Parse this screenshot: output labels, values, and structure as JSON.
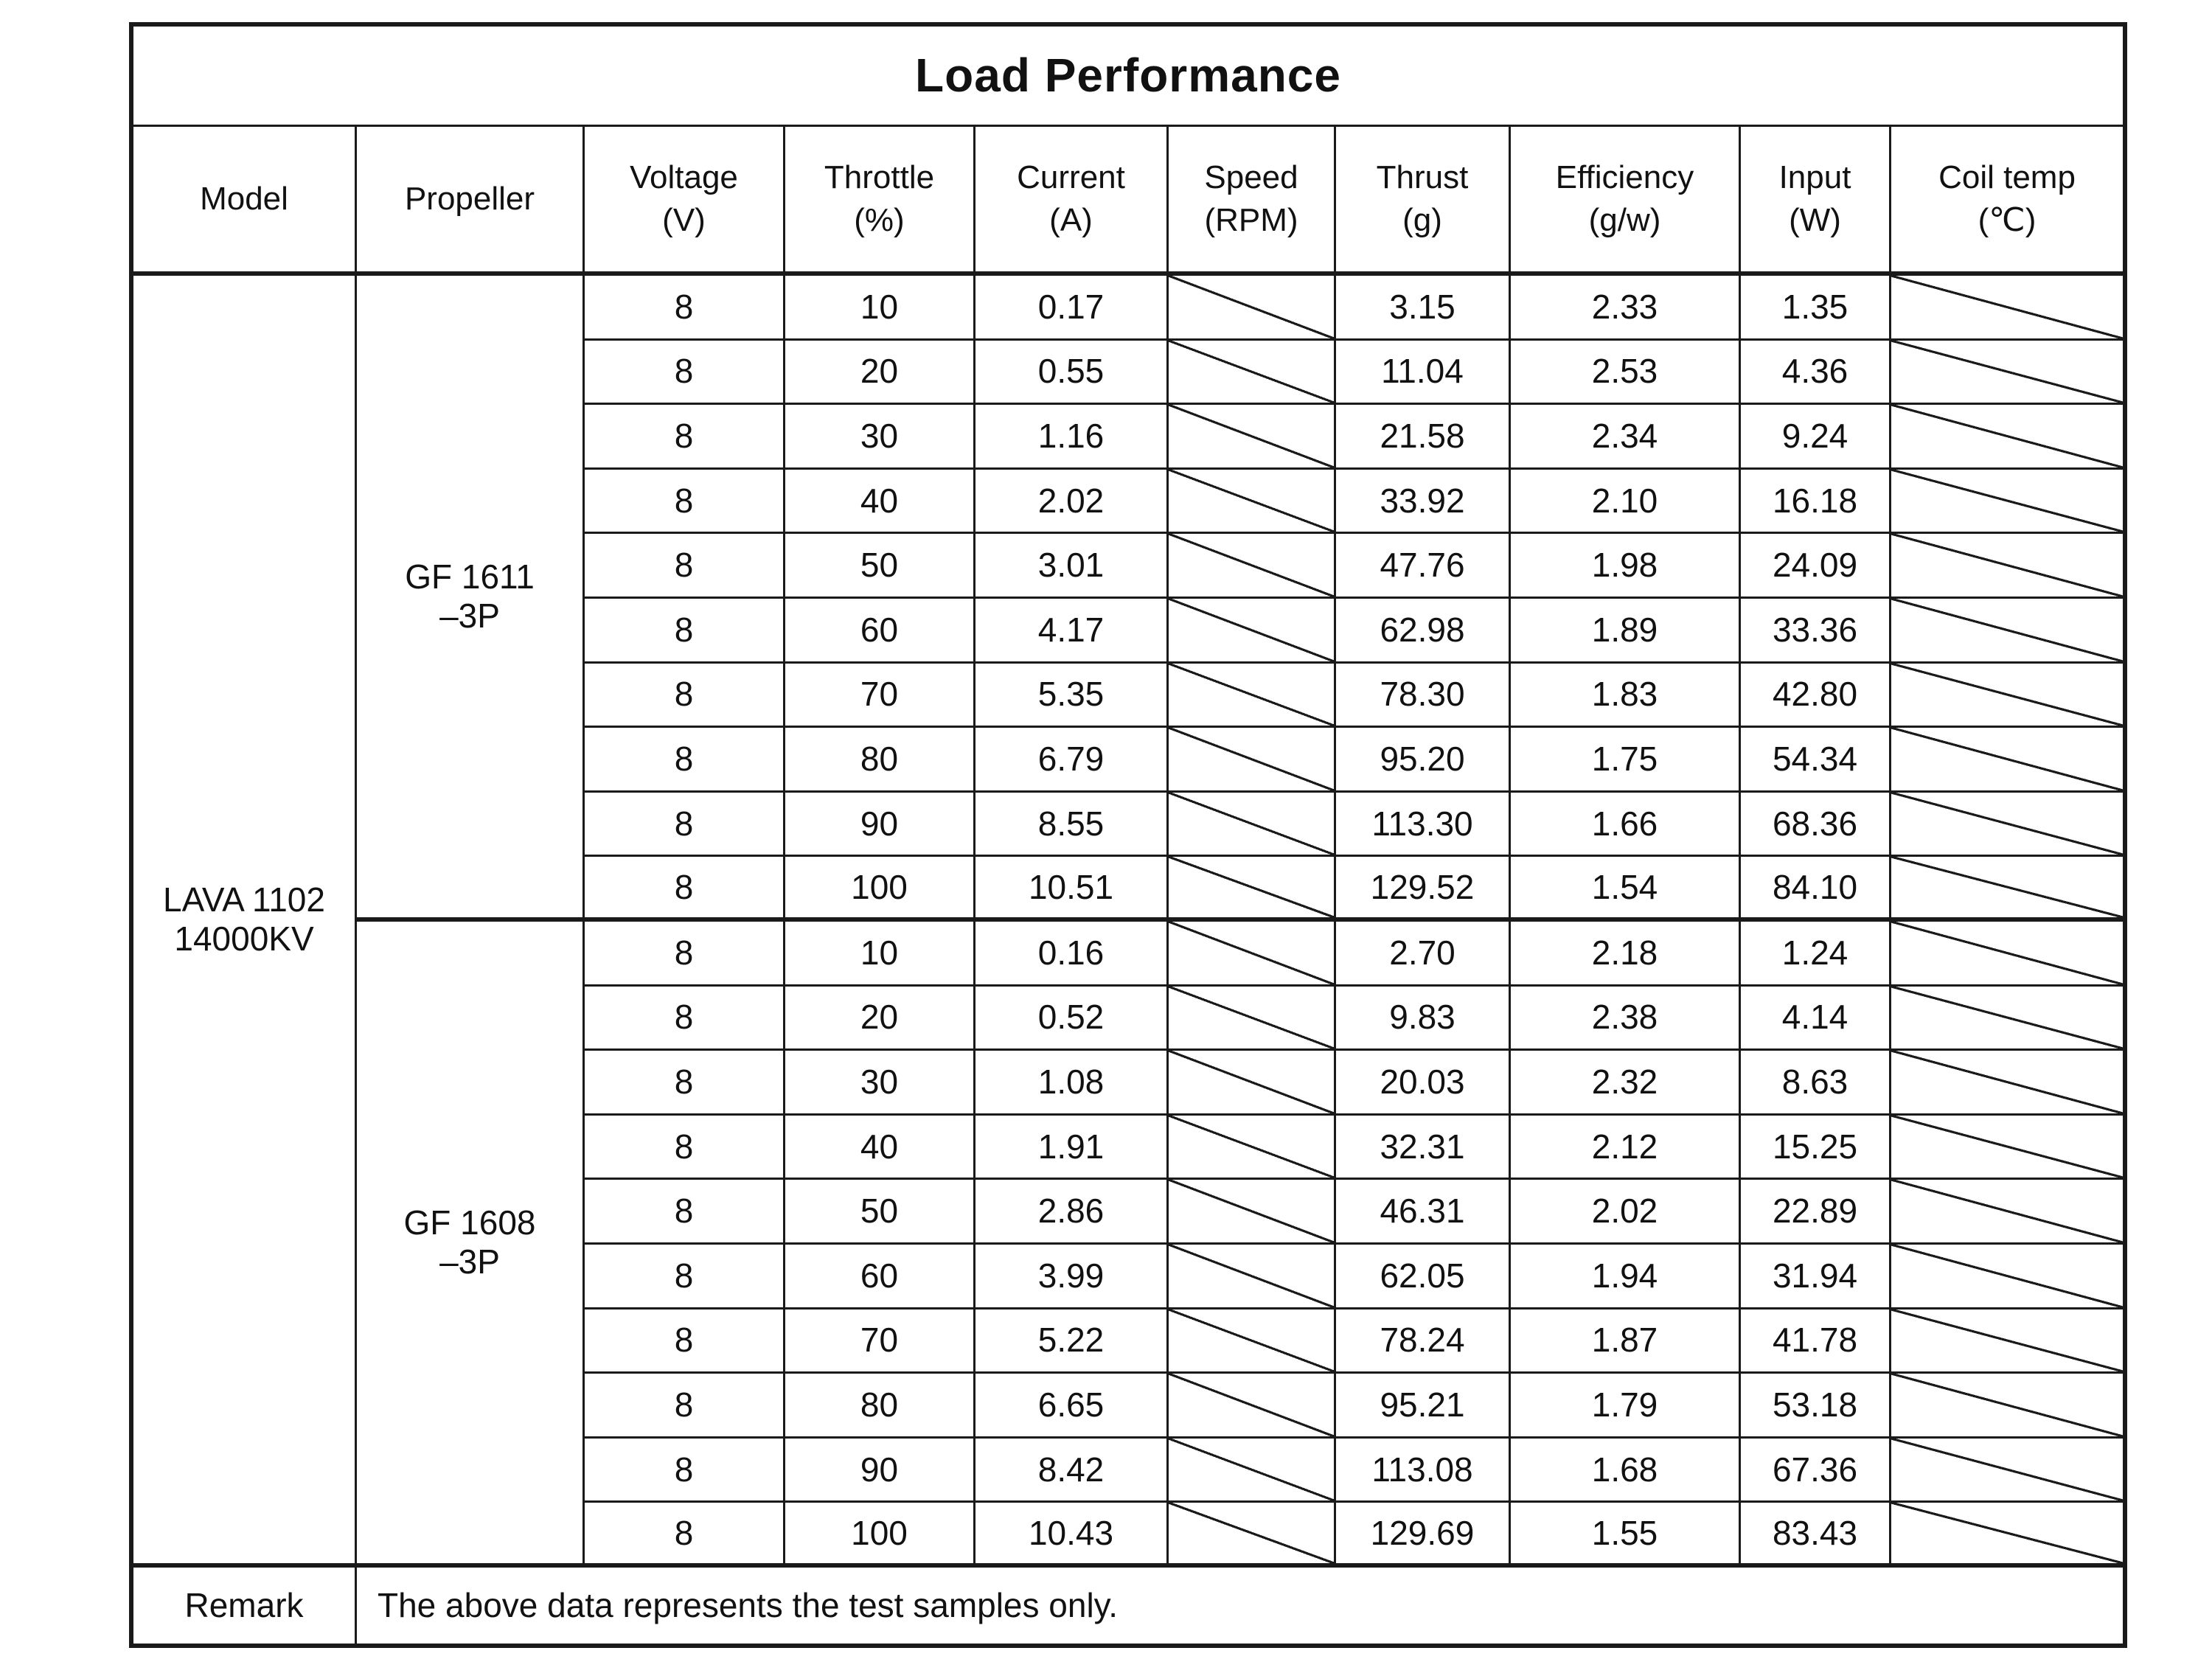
{
  "title": "Load Performance",
  "columns": [
    {
      "key": "model",
      "name": "Model",
      "unit": ""
    },
    {
      "key": "propeller",
      "name": "Propeller",
      "unit": ""
    },
    {
      "key": "voltage",
      "name": "Voltage",
      "unit": "(V)"
    },
    {
      "key": "throttle",
      "name": "Throttle",
      "unit": "(%)"
    },
    {
      "key": "current",
      "name": "Current",
      "unit": "(A)"
    },
    {
      "key": "speed",
      "name": "Speed",
      "unit": "(RPM)",
      "slash": true
    },
    {
      "key": "thrust",
      "name": "Thrust",
      "unit": "(g)"
    },
    {
      "key": "efficiency",
      "name": "Efficiency",
      "unit": "(g/w)"
    },
    {
      "key": "input",
      "name": "Input",
      "unit": "(W)"
    },
    {
      "key": "coil_temp",
      "name": "Coil temp",
      "unit": "(℃)",
      "slash": true
    }
  ],
  "value_columns": [
    "voltage",
    "throttle",
    "current",
    "speed",
    "thrust",
    "efficiency",
    "input",
    "coil_temp"
  ],
  "model": {
    "line1": "LAVA 1102",
    "line2": "14000KV"
  },
  "sections": [
    {
      "propeller": {
        "line1": "GF 1611",
        "line2": "–3P"
      },
      "rows": [
        {
          "voltage": "8",
          "throttle": "10",
          "current": "0.17",
          "thrust": "3.15",
          "efficiency": "2.33",
          "input": "1.35"
        },
        {
          "voltage": "8",
          "throttle": "20",
          "current": "0.55",
          "thrust": "11.04",
          "efficiency": "2.53",
          "input": "4.36"
        },
        {
          "voltage": "8",
          "throttle": "30",
          "current": "1.16",
          "thrust": "21.58",
          "efficiency": "2.34",
          "input": "9.24"
        },
        {
          "voltage": "8",
          "throttle": "40",
          "current": "2.02",
          "thrust": "33.92",
          "efficiency": "2.10",
          "input": "16.18"
        },
        {
          "voltage": "8",
          "throttle": "50",
          "current": "3.01",
          "thrust": "47.76",
          "efficiency": "1.98",
          "input": "24.09"
        },
        {
          "voltage": "8",
          "throttle": "60",
          "current": "4.17",
          "thrust": "62.98",
          "efficiency": "1.89",
          "input": "33.36"
        },
        {
          "voltage": "8",
          "throttle": "70",
          "current": "5.35",
          "thrust": "78.30",
          "efficiency": "1.83",
          "input": "42.80"
        },
        {
          "voltage": "8",
          "throttle": "80",
          "current": "6.79",
          "thrust": "95.20",
          "efficiency": "1.75",
          "input": "54.34"
        },
        {
          "voltage": "8",
          "throttle": "90",
          "current": "8.55",
          "thrust": "113.30",
          "efficiency": "1.66",
          "input": "68.36"
        },
        {
          "voltage": "8",
          "throttle": "100",
          "current": "10.51",
          "thrust": "129.52",
          "efficiency": "1.54",
          "input": "84.10"
        }
      ]
    },
    {
      "propeller": {
        "line1": "GF 1608",
        "line2": "–3P"
      },
      "rows": [
        {
          "voltage": "8",
          "throttle": "10",
          "current": "0.16",
          "thrust": "2.70",
          "efficiency": "2.18",
          "input": "1.24"
        },
        {
          "voltage": "8",
          "throttle": "20",
          "current": "0.52",
          "thrust": "9.83",
          "efficiency": "2.38",
          "input": "4.14"
        },
        {
          "voltage": "8",
          "throttle": "30",
          "current": "1.08",
          "thrust": "20.03",
          "efficiency": "2.32",
          "input": "8.63"
        },
        {
          "voltage": "8",
          "throttle": "40",
          "current": "1.91",
          "thrust": "32.31",
          "efficiency": "2.12",
          "input": "15.25"
        },
        {
          "voltage": "8",
          "throttle": "50",
          "current": "2.86",
          "thrust": "46.31",
          "efficiency": "2.02",
          "input": "22.89"
        },
        {
          "voltage": "8",
          "throttle": "60",
          "current": "3.99",
          "thrust": "62.05",
          "efficiency": "1.94",
          "input": "31.94"
        },
        {
          "voltage": "8",
          "throttle": "70",
          "current": "5.22",
          "thrust": "78.24",
          "efficiency": "1.87",
          "input": "41.78"
        },
        {
          "voltage": "8",
          "throttle": "80",
          "current": "6.65",
          "thrust": "95.21",
          "efficiency": "1.79",
          "input": "53.18"
        },
        {
          "voltage": "8",
          "throttle": "90",
          "current": "8.42",
          "thrust": "113.08",
          "efficiency": "1.68",
          "input": "67.36"
        },
        {
          "voltage": "8",
          "throttle": "100",
          "current": "10.43",
          "thrust": "129.69",
          "efficiency": "1.55",
          "input": "83.43"
        }
      ]
    }
  ],
  "remark": {
    "label": "Remark",
    "text": "The above data represents the test samples only."
  }
}
